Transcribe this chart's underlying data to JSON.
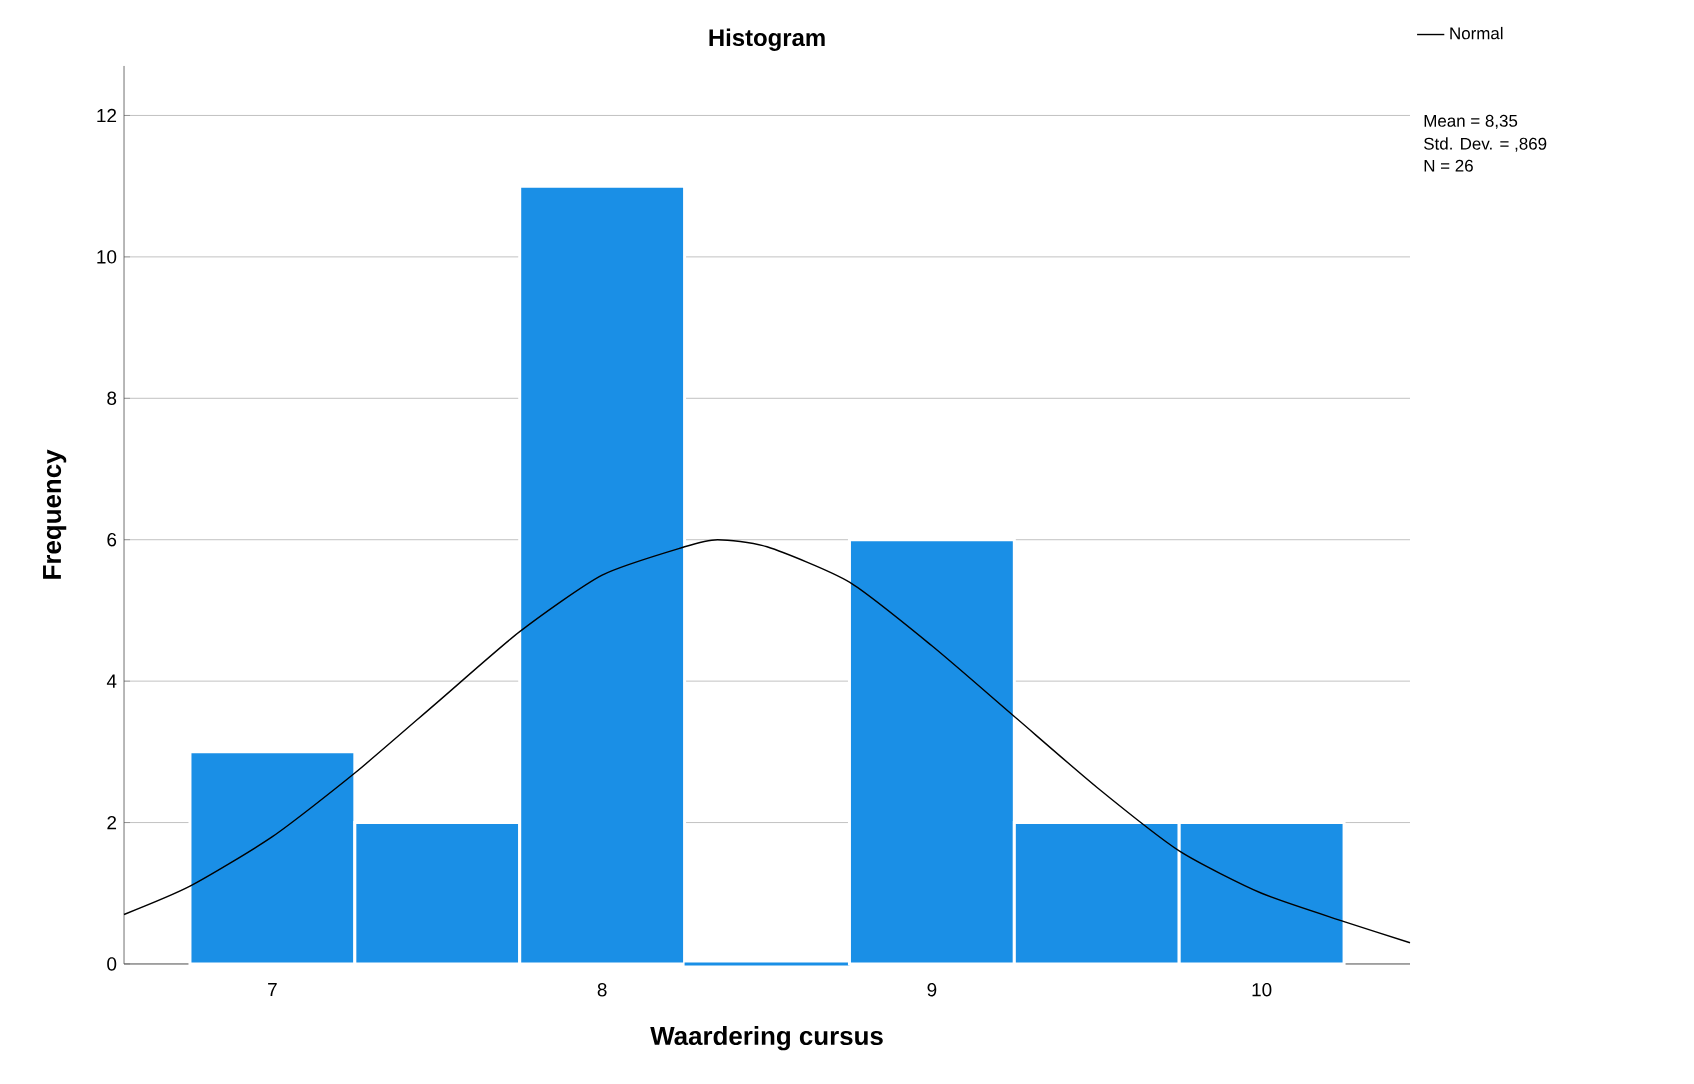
{
  "chart_data": {
    "type": "histogram",
    "title": "Histogram",
    "xlabel": "Waardering cursus",
    "ylabel": "Frequency",
    "annotations": [
      "Mean = 8,35",
      "Std. Dev. = ,869",
      "N = 26"
    ],
    "series": [
      {
        "color": "#1a8fe6",
        "bins": [
          6.75,
          7.25,
          7.75,
          8.25,
          8.75,
          9.25,
          9.75,
          10.25
        ],
        "values": [
          3,
          2,
          11,
          0,
          6,
          2,
          2
        ]
      },
      {
        "type": "line",
        "name": "Normal",
        "color": "#000000",
        "x": [
          6.55,
          6.75,
          7.0,
          7.25,
          7.5,
          7.75,
          8.0,
          8.25,
          8.35,
          8.5,
          8.75,
          9.0,
          9.25,
          9.5,
          9.75,
          10.0,
          10.25,
          10.45
        ],
        "values": [
          0.7,
          1.1,
          1.8,
          2.7,
          3.7,
          4.7,
          5.5,
          5.9,
          6.0,
          5.9,
          5.4,
          4.5,
          3.5,
          2.5,
          1.6,
          1.0,
          0.6,
          0.3
        ]
      }
    ],
    "xlim": [
      6.55,
      10.45
    ],
    "xticks": [
      7,
      8,
      9,
      10
    ],
    "ylim": [
      0,
      12.7
    ],
    "yticks": [
      0,
      2,
      4,
      6,
      8,
      10,
      12
    ],
    "grid": "y",
    "legend": "top right"
  }
}
